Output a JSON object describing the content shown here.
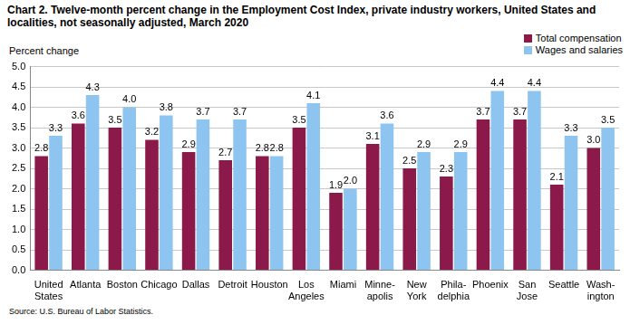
{
  "chart_data": {
    "type": "bar",
    "title": "Chart 2. Twelve-month percent change in the Employment Cost Index, private industry workers, United States and localities, not seasonally adjusted, March 2020",
    "ylabel": "Percent change",
    "source": "Source: U.S. Bureau of Labor Statistics.",
    "categories": [
      "United\nStates",
      "Atlanta",
      "Boston",
      "Chicago",
      "Dallas",
      "Detroit",
      "Houston",
      "Los\nAngeles",
      "Miami",
      "Minne-\napolis",
      "New\nYork",
      "Phila-\ndelphia",
      "Phoenix",
      "San\nJose",
      "Seattle",
      "Wash-\nington"
    ],
    "series": [
      {
        "name": "Total compensation",
        "color": "#8b1a4a",
        "values": [
          2.8,
          3.6,
          3.5,
          3.2,
          2.9,
          2.7,
          2.8,
          3.5,
          1.9,
          3.1,
          2.5,
          2.3,
          3.7,
          3.7,
          2.1,
          3.0
        ],
        "value_labels": [
          "2.8",
          "3.6",
          "3.5",
          "3.2",
          "2.9",
          "2.7",
          "2.8",
          "3.5",
          "1.9",
          "3.1",
          "2.5",
          "2.3",
          "3.7",
          "3.7",
          "2.1",
          "3.0"
        ]
      },
      {
        "name": "Wages and salaries",
        "color": "#8ec5f0",
        "values": [
          3.3,
          4.3,
          4.0,
          3.8,
          3.7,
          3.7,
          2.8,
          4.1,
          2.0,
          3.6,
          2.9,
          2.9,
          4.4,
          4.4,
          3.3,
          3.5
        ],
        "value_labels": [
          "3.3",
          "4.3",
          "4.0",
          "3.8",
          "3.7",
          "3.7",
          "2.8",
          "4.1",
          "2.0",
          "3.6",
          "2.9",
          "2.9",
          "4.4",
          "4.4",
          "3.3",
          "3.5"
        ]
      }
    ],
    "ylim": [
      0,
      5
    ],
    "yticks": [
      {
        "value": 0,
        "label": "0.0"
      },
      {
        "value": 0.5,
        "label": "0.5"
      },
      {
        "value": 1,
        "label": "1.0"
      },
      {
        "value": 1.5,
        "label": "1.5"
      },
      {
        "value": 2,
        "label": "2.0"
      },
      {
        "value": 2.5,
        "label": "2.5"
      },
      {
        "value": 3,
        "label": "3.0"
      },
      {
        "value": 3.5,
        "label": "3.5"
      },
      {
        "value": 4,
        "label": "4.0"
      },
      {
        "value": 4.5,
        "label": "4.5"
      },
      {
        "value": 5,
        "label": "5.0"
      }
    ],
    "grid": true,
    "legend": "top right",
    "data_labels": true
  }
}
